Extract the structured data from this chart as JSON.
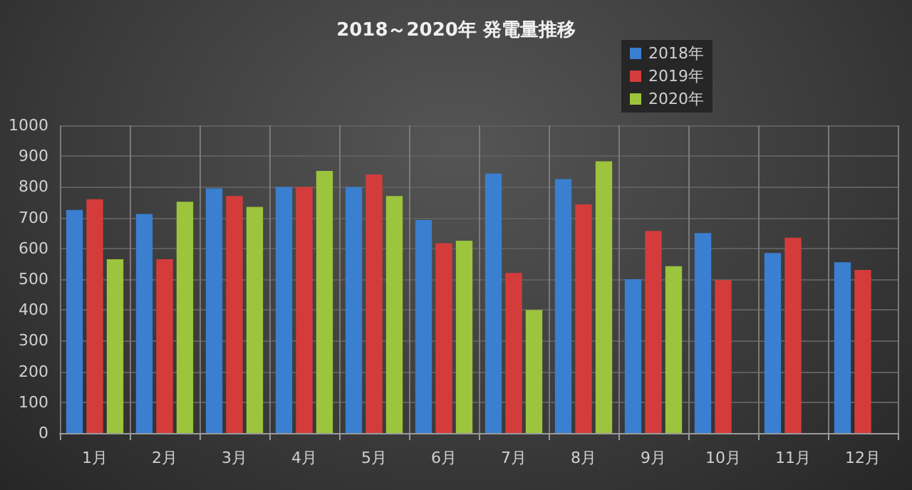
{
  "chart_data": {
    "type": "bar",
    "title": "2018～2020年 発電量推移",
    "categories": [
      "1月",
      "2月",
      "3月",
      "4月",
      "5月",
      "6月",
      "7月",
      "8月",
      "9月",
      "10月",
      "11月",
      "12月"
    ],
    "series": [
      {
        "name": "2018年",
        "color": "#3a7fd0",
        "values": [
          725,
          712,
          795,
          800,
          800,
          692,
          843,
          825,
          500,
          650,
          585,
          555
        ]
      },
      {
        "name": "2019年",
        "color": "#d43c3c",
        "values": [
          760,
          565,
          770,
          800,
          840,
          617,
          520,
          743,
          657,
          497,
          635,
          530
        ]
      },
      {
        "name": "2020年",
        "color": "#9cc43c",
        "values": [
          565,
          752,
          735,
          852,
          770,
          625,
          400,
          883,
          542,
          null,
          null,
          null
        ]
      }
    ],
    "ylim": [
      0,
      1000
    ],
    "yticks": [
      0,
      100,
      200,
      300,
      400,
      500,
      600,
      700,
      800,
      900,
      1000
    ],
    "grid": true,
    "legend": "top right"
  }
}
